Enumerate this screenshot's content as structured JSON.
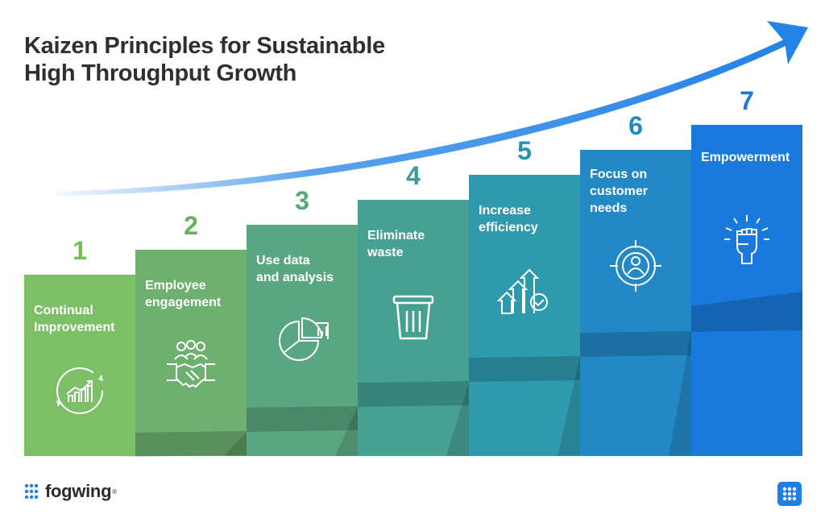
{
  "title": {
    "line1": "Kaizen Principles for Sustainable",
    "line2": "High Throughput Growth"
  },
  "steps": [
    {
      "number": "1",
      "label_lines": [
        "Continual",
        "Improvement"
      ],
      "icon": "continual-improvement-icon",
      "color": "#7dbf67",
      "num_color": "#74c04f"
    },
    {
      "number": "2",
      "label_lines": [
        "Employee",
        "engagement"
      ],
      "icon": "handshake-team-icon",
      "color": "#6db06f",
      "num_color": "#64b257"
    },
    {
      "number": "3",
      "label_lines": [
        "Use data",
        "and analysis"
      ],
      "icon": "pie-chart-icon",
      "color": "#5ba682",
      "num_color": "#56a87c"
    },
    {
      "number": "4",
      "label_lines": [
        "Eliminate",
        "waste"
      ],
      "icon": "trash-bin-icon",
      "color": "#46a193",
      "num_color": "#3f9d93"
    },
    {
      "number": "5",
      "label_lines": [
        "Increase",
        "efficiency"
      ],
      "icon": "growth-arrows-icon",
      "color": "#2f9aae",
      "num_color": "#2a93ab"
    },
    {
      "number": "6",
      "label_lines": [
        "Focus on",
        "customer",
        "needs"
      ],
      "icon": "customer-target-icon",
      "color": "#2389c6",
      "num_color": "#2288c5"
    },
    {
      "number": "7",
      "label_lines": [
        "Empowerment"
      ],
      "icon": "raised-fist-icon",
      "color": "#1979dc",
      "num_color": "#1a78d8"
    }
  ],
  "brand": {
    "name": "fogwing",
    "registered": "®",
    "logo": "fogwing-dots-icon"
  },
  "colors": {
    "arrow": "#2483e6",
    "title": "#2f2f2f"
  }
}
